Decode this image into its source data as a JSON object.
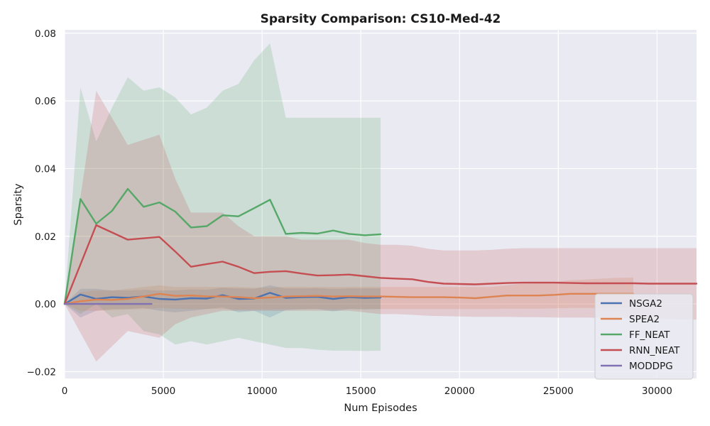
{
  "chart_data": {
    "type": "line",
    "title": "Sparsity Comparison: CS10-Med-42",
    "xlabel": "Num Episodes",
    "ylabel": "Sparsity",
    "xlim": [
      0,
      32000
    ],
    "ylim": [
      -0.022,
      0.081
    ],
    "xticks": [
      0,
      5000,
      10000,
      15000,
      20000,
      25000,
      30000
    ],
    "xtick_labels": [
      "0",
      "5000",
      "10000",
      "15000",
      "20000",
      "25000",
      "30000"
    ],
    "yticks": [
      -0.02,
      0.0,
      0.02,
      0.04,
      0.06,
      0.08
    ],
    "ytick_labels": [
      "−0.02",
      "0.00",
      "0.02",
      "0.04",
      "0.06",
      "0.08"
    ],
    "grid": true,
    "legend_position": "lower-right",
    "series": [
      {
        "name": "NSGA2",
        "color": "#4c72b0",
        "x": [
          0,
          800,
          1600,
          2400,
          3200,
          4000,
          4800,
          5600,
          6400,
          7200,
          8000,
          8800,
          9600,
          10400,
          11200,
          12000,
          12800,
          13600,
          14400,
          15200,
          16000
        ],
        "y": [
          0.0,
          0.0028,
          0.0015,
          0.002,
          0.0018,
          0.0022,
          0.0015,
          0.0013,
          0.0017,
          0.0016,
          0.0026,
          0.0015,
          0.0016,
          0.0033,
          0.0018,
          0.002,
          0.0021,
          0.0015,
          0.002,
          0.0018,
          0.0019
        ],
        "lower": [
          0.0,
          -0.004,
          -0.002,
          -0.0015,
          -0.0015,
          -0.0012,
          -0.002,
          -0.0025,
          -0.002,
          -0.0015,
          -0.001,
          -0.0025,
          -0.002,
          -0.004,
          -0.0018,
          -0.0016,
          -0.0015,
          -0.0022,
          -0.0015,
          -0.0016,
          -0.0015
        ],
        "upper": [
          0.0,
          0.0045,
          0.0045,
          0.004,
          0.004,
          0.0042,
          0.004,
          0.004,
          0.0043,
          0.0042,
          0.0048,
          0.0046,
          0.0045,
          0.0055,
          0.0046,
          0.0046,
          0.0047,
          0.0044,
          0.0046,
          0.0046,
          0.0046
        ]
      },
      {
        "name": "SPEA2",
        "color": "#dd8452",
        "x": [
          0,
          800,
          1600,
          2400,
          3200,
          4000,
          4800,
          5600,
          6400,
          7200,
          8000,
          8800,
          9600,
          10400,
          11200,
          12000,
          12800,
          13600,
          14400,
          15200,
          16000,
          16800,
          17600,
          18400,
          19200,
          20000,
          20800,
          21600,
          22400,
          23200,
          24000,
          24800,
          25600,
          26400,
          27200,
          28000,
          28800
        ],
        "y": [
          0.0,
          0.0008,
          0.0013,
          0.0012,
          0.0015,
          0.0022,
          0.003,
          0.0024,
          0.0025,
          0.0022,
          0.0022,
          0.002,
          0.0017,
          0.0019,
          0.0022,
          0.0023,
          0.0024,
          0.0022,
          0.0023,
          0.0022,
          0.0022,
          0.0021,
          0.002,
          0.002,
          0.002,
          0.0019,
          0.0017,
          0.0021,
          0.0025,
          0.0025,
          0.0025,
          0.0027,
          0.003,
          0.003,
          0.003,
          0.003,
          0.003
        ],
        "lower": [
          0.0,
          -0.002,
          -0.002,
          -0.0018,
          -0.0016,
          -0.0015,
          -0.0012,
          -0.0014,
          -0.0015,
          -0.0015,
          -0.0015,
          -0.0016,
          -0.0016,
          -0.0016,
          -0.0015,
          -0.0015,
          -0.0015,
          -0.0015,
          -0.0015,
          -0.0015,
          -0.0015,
          -0.0015,
          -0.0015,
          -0.0015,
          -0.0015,
          -0.0015,
          -0.0015,
          -0.0015,
          -0.0014,
          -0.0014,
          -0.0014,
          -0.0013,
          -0.0012,
          -0.0012,
          -0.0012,
          -0.0012,
          -0.0012
        ],
        "upper": [
          0.0,
          0.0035,
          0.004,
          0.004,
          0.0045,
          0.005,
          0.0055,
          0.005,
          0.005,
          0.005,
          0.005,
          0.005,
          0.0048,
          0.0048,
          0.005,
          0.005,
          0.005,
          0.005,
          0.005,
          0.005,
          0.005,
          0.005,
          0.005,
          0.005,
          0.005,
          0.005,
          0.005,
          0.005,
          0.0055,
          0.006,
          0.0062,
          0.0065,
          0.007,
          0.0072,
          0.0075,
          0.0077,
          0.0078
        ]
      },
      {
        "name": "FF_NEAT",
        "color": "#55a868",
        "x": [
          0,
          800,
          1600,
          2400,
          3200,
          4000,
          4800,
          5600,
          6400,
          7200,
          8000,
          8800,
          9600,
          10400,
          11200,
          12000,
          12800,
          13600,
          14400,
          15200,
          16000
        ],
        "y": [
          0.0,
          0.031,
          0.0237,
          0.0275,
          0.034,
          0.0287,
          0.03,
          0.0273,
          0.0226,
          0.023,
          0.0262,
          0.0259,
          0.0283,
          0.0308,
          0.0207,
          0.021,
          0.0208,
          0.0217,
          0.0207,
          0.0203,
          0.0206
        ],
        "lower": [
          0.0,
          -0.003,
          0.0,
          -0.004,
          -0.003,
          -0.008,
          -0.009,
          -0.012,
          -0.011,
          -0.012,
          -0.011,
          -0.01,
          -0.011,
          -0.012,
          -0.013,
          -0.013,
          -0.0135,
          -0.0138,
          -0.0138,
          -0.0139,
          -0.0138
        ],
        "upper": [
          0.0,
          0.064,
          0.048,
          0.058,
          0.067,
          0.063,
          0.064,
          0.061,
          0.056,
          0.058,
          0.063,
          0.065,
          0.072,
          0.077,
          0.055,
          0.055,
          0.055,
          0.055,
          0.055,
          0.055,
          0.055
        ]
      },
      {
        "name": "RNN_NEAT",
        "color": "#c44e52",
        "x": [
          0,
          1600,
          3200,
          4800,
          5600,
          6400,
          7200,
          8000,
          8800,
          9600,
          10400,
          11200,
          12000,
          12800,
          13600,
          14400,
          15200,
          16000,
          16800,
          17600,
          18400,
          19200,
          20000,
          20800,
          21600,
          22400,
          23200,
          24000,
          24800,
          25600,
          26400,
          27200,
          28000,
          28800,
          29600,
          30400,
          31200,
          32000
        ],
        "y": [
          0.0,
          0.0233,
          0.019,
          0.0198,
          0.0155,
          0.011,
          0.0118,
          0.0125,
          0.011,
          0.0091,
          0.0095,
          0.0097,
          0.009,
          0.0084,
          0.0085,
          0.0087,
          0.0082,
          0.0077,
          0.0075,
          0.0073,
          0.0065,
          0.006,
          0.0059,
          0.0058,
          0.006,
          0.0062,
          0.0063,
          0.0063,
          0.0063,
          0.0062,
          0.0061,
          0.0061,
          0.0061,
          0.0061,
          0.006,
          0.006,
          0.006,
          0.006
        ],
        "lower": [
          0.0,
          -0.017,
          -0.008,
          -0.01,
          -0.006,
          -0.004,
          -0.003,
          -0.002,
          -0.002,
          -0.002,
          -0.002,
          -0.002,
          -0.002,
          -0.002,
          -0.002,
          -0.002,
          -0.0025,
          -0.003,
          -0.003,
          -0.0032,
          -0.0035,
          -0.0036,
          -0.0037,
          -0.0038,
          -0.0038,
          -0.0038,
          -0.0039,
          -0.0039,
          -0.004,
          -0.004,
          -0.004,
          -0.0041,
          -0.0042,
          -0.0043,
          -0.0044,
          -0.0045,
          -0.0046,
          -0.0046
        ],
        "upper": [
          0.0,
          0.063,
          0.047,
          0.05,
          0.037,
          0.027,
          0.027,
          0.027,
          0.023,
          0.02,
          0.02,
          0.02,
          0.019,
          0.019,
          0.019,
          0.019,
          0.018,
          0.0175,
          0.0175,
          0.0172,
          0.0163,
          0.0158,
          0.0158,
          0.0158,
          0.016,
          0.0163,
          0.0165,
          0.0165,
          0.0165,
          0.0165,
          0.0165,
          0.0165,
          0.0165,
          0.0165,
          0.0165,
          0.0165,
          0.0165,
          0.0165
        ]
      },
      {
        "name": "MODDPG",
        "color": "#8172b3",
        "x": [
          0,
          800,
          1600,
          2400,
          3200,
          4000,
          4400
        ],
        "y": [
          0.0,
          0.0,
          0.0,
          0.0,
          0.0,
          0.0,
          0.0
        ],
        "lower": [
          0.0,
          0.0,
          0.0,
          0.0,
          0.0,
          0.0,
          0.0
        ],
        "upper": [
          0.0,
          0.0,
          0.0,
          0.0,
          0.0,
          0.0,
          0.0
        ]
      }
    ]
  }
}
